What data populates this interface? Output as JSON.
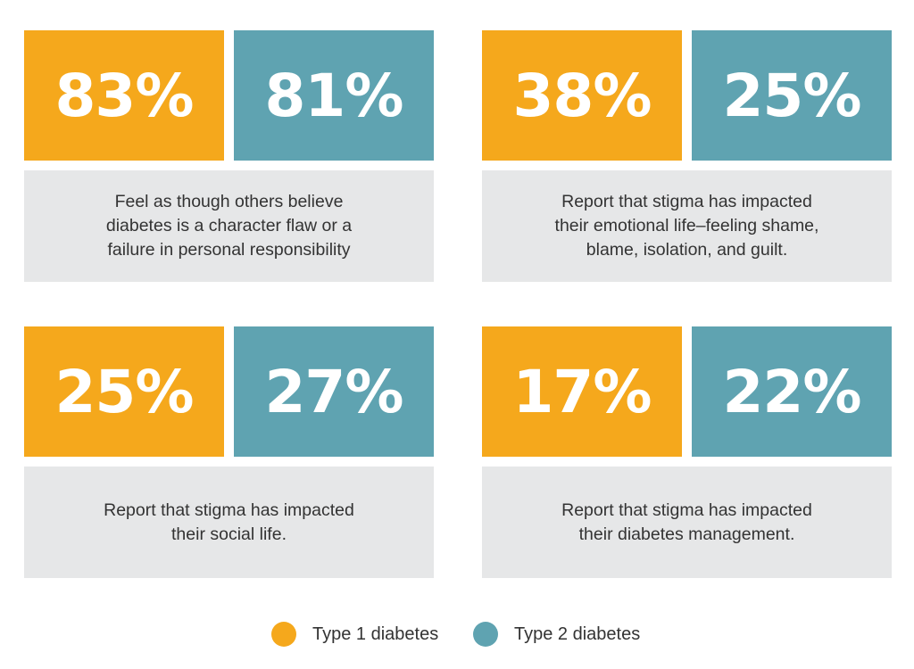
{
  "chart_data": {
    "type": "bar",
    "categories": [
      "Feel as though others believe diabetes is a character flaw or a failure in personal responsibility",
      "Report that stigma has impacted their emotional life–feeling shame, blame, isolation, and guilt.",
      "Report that stigma has impacted their social life.",
      "Report that stigma has impacted their diabetes management."
    ],
    "series": [
      {
        "name": "Type 1 diabetes",
        "values": [
          83,
          38,
          25,
          17
        ],
        "labels": [
          "83%",
          "38%",
          "25%",
          "17%"
        ]
      },
      {
        "name": "Type 2 diabetes",
        "values": [
          81,
          25,
          27,
          22
        ],
        "labels": [
          "81%",
          "25%",
          "27%",
          "22%"
        ]
      }
    ],
    "colors": {
      "type1": "#f5a81c",
      "type2": "#5fa3b1"
    },
    "legend": "bottom-center"
  },
  "legend": {
    "items": [
      {
        "label": "Type 1 diabetes",
        "color": "#f5a81c"
      },
      {
        "label": "Type 2 diabetes",
        "color": "#5fa3b1"
      }
    ]
  }
}
